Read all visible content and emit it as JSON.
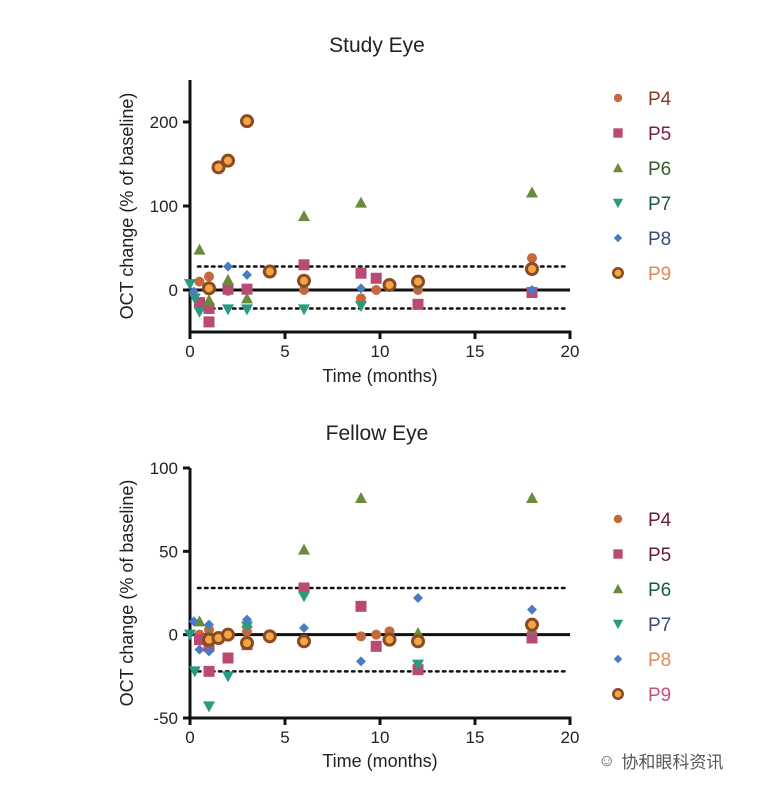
{
  "chart_data": [
    {
      "type": "scatter",
      "title": "Study Eye",
      "xlabel": "Time (months)",
      "ylabel": "OCT change (% of baseline)",
      "xlim": [
        0,
        20
      ],
      "ylim": [
        -50,
        250
      ],
      "xticks": [
        0,
        5,
        10,
        15,
        20
      ],
      "yticks": [
        0,
        100,
        200
      ],
      "reference_lines": {
        "solid": 0,
        "dotted": [
          28,
          -22
        ]
      },
      "legend_position": "right",
      "series": [
        {
          "name": "P4",
          "marker": "circle",
          "color": "#c4683e",
          "label_color": "#8a3a28",
          "points": [
            [
              0.5,
              10
            ],
            [
              1,
              16
            ],
            [
              2,
              -1
            ],
            [
              3,
              0
            ],
            [
              6,
              0
            ],
            [
              9,
              -10
            ],
            [
              9.8,
              0
            ],
            [
              10.5,
              5
            ],
            [
              12,
              0
            ],
            [
              18,
              38
            ]
          ]
        },
        {
          "name": "P5",
          "marker": "square",
          "color": "#b84a74",
          "label_color": "#7a2048",
          "points": [
            [
              0.5,
              -15
            ],
            [
              1,
              -22
            ],
            [
              1,
              -38
            ],
            [
              2,
              1
            ],
            [
              3,
              1
            ],
            [
              6,
              30
            ],
            [
              9,
              20
            ],
            [
              9.8,
              14
            ],
            [
              12,
              -17
            ],
            [
              18,
              -3
            ]
          ]
        },
        {
          "name": "P6",
          "marker": "triangle-up",
          "color": "#6a8c3a",
          "label_color": "#3a5a2a",
          "points": [
            [
              0.5,
              48
            ],
            [
              1,
              -12
            ],
            [
              2,
              12
            ],
            [
              3,
              -10
            ],
            [
              6,
              88
            ],
            [
              9,
              104
            ],
            [
              18,
              116
            ]
          ]
        },
        {
          "name": "P7",
          "marker": "triangle-down",
          "color": "#2a9a80",
          "label_color": "#1a5a48",
          "points": [
            [
              0,
              7
            ],
            [
              0.25,
              -10
            ],
            [
              0.5,
              -26
            ],
            [
              2,
              -23
            ],
            [
              3,
              -23
            ],
            [
              6,
              -23
            ],
            [
              9,
              -19
            ],
            [
              12,
              5
            ]
          ]
        },
        {
          "name": "P8",
          "marker": "diamond",
          "color": "#4a7cc0",
          "label_color": "#3a4a7a",
          "points": [
            [
              0.2,
              -2
            ],
            [
              1,
              4
            ],
            [
              2,
              28
            ],
            [
              3,
              18
            ],
            [
              6,
              7
            ],
            [
              9,
              2
            ],
            [
              18,
              0
            ]
          ]
        },
        {
          "name": "P9",
          "marker": "ring",
          "color": "#8a4a22",
          "fill": "#f5a545",
          "label_color": "#e0885a",
          "points": [
            [
              1,
              2
            ],
            [
              1.5,
              146
            ],
            [
              2,
              154
            ],
            [
              3,
              201
            ],
            [
              4.2,
              22
            ],
            [
              6,
              11
            ],
            [
              10.5,
              6
            ],
            [
              12,
              10
            ],
            [
              18,
              25
            ]
          ]
        }
      ]
    },
    {
      "type": "scatter",
      "title": "Fellow Eye",
      "xlabel": "Time (months)",
      "ylabel": "OCT change (% of baseline)",
      "xlim": [
        0,
        20
      ],
      "ylim": [
        -50,
        100
      ],
      "xticks": [
        0,
        5,
        10,
        15,
        20
      ],
      "yticks": [
        -50,
        0,
        50,
        100
      ],
      "reference_lines": {
        "solid": 0,
        "dotted": [
          28,
          -22
        ]
      },
      "legend_position": "right",
      "series": [
        {
          "name": "P4",
          "marker": "circle",
          "color": "#c4683e",
          "label_color": "#6a1a3a",
          "points": [
            [
              0.5,
              0
            ],
            [
              1,
              3
            ],
            [
              2,
              0
            ],
            [
              3,
              2
            ],
            [
              6,
              -3
            ],
            [
              9,
              -1
            ],
            [
              9.8,
              0
            ],
            [
              10.5,
              2
            ],
            [
              12,
              -3
            ],
            [
              18,
              1
            ]
          ]
        },
        {
          "name": "P5",
          "marker": "square",
          "color": "#b84a74",
          "label_color": "#6a1a3a",
          "points": [
            [
              0.5,
              -3
            ],
            [
              1,
              -7
            ],
            [
              1,
              -22
            ],
            [
              2,
              -14
            ],
            [
              3,
              -6
            ],
            [
              6,
              28
            ],
            [
              9,
              17
            ],
            [
              9.8,
              -7
            ],
            [
              12,
              -21
            ],
            [
              18,
              -2
            ]
          ]
        },
        {
          "name": "P6",
          "marker": "triangle-up",
          "color": "#6a8c3a",
          "label_color": "#1a5a40",
          "points": [
            [
              0.5,
              8
            ],
            [
              1,
              0
            ],
            [
              3,
              7
            ],
            [
              6,
              51
            ],
            [
              9,
              82
            ],
            [
              12,
              1
            ],
            [
              18,
              82
            ]
          ]
        },
        {
          "name": "P7",
          "marker": "triangle-down",
          "color": "#2a9a80",
          "label_color": "#3a4a7a",
          "points": [
            [
              0,
              0
            ],
            [
              0.25,
              -22
            ],
            [
              1,
              -43
            ],
            [
              2,
              -25
            ],
            [
              3,
              5
            ],
            [
              6,
              23
            ],
            [
              12,
              -18
            ],
            [
              18,
              3
            ]
          ]
        },
        {
          "name": "P8",
          "marker": "diamond",
          "color": "#4a7cc0",
          "label_color": "#e0885a",
          "points": [
            [
              0.2,
              8
            ],
            [
              0.5,
              -9
            ],
            [
              1,
              -10
            ],
            [
              1,
              6
            ],
            [
              3,
              9
            ],
            [
              6,
              4
            ],
            [
              9,
              -16
            ],
            [
              12,
              22
            ],
            [
              18,
              15
            ]
          ]
        },
        {
          "name": "P9",
          "marker": "ring",
          "color": "#8a4a22",
          "fill": "#f5a545",
          "label_color": "#c05080",
          "points": [
            [
              1,
              -3
            ],
            [
              1.5,
              -2
            ],
            [
              2,
              0
            ],
            [
              3,
              -5
            ],
            [
              4.2,
              -1
            ],
            [
              6,
              -4
            ],
            [
              10.5,
              -3
            ],
            [
              12,
              -4
            ],
            [
              18,
              6
            ]
          ]
        }
      ]
    }
  ],
  "watermark": "协和眼科资讯"
}
